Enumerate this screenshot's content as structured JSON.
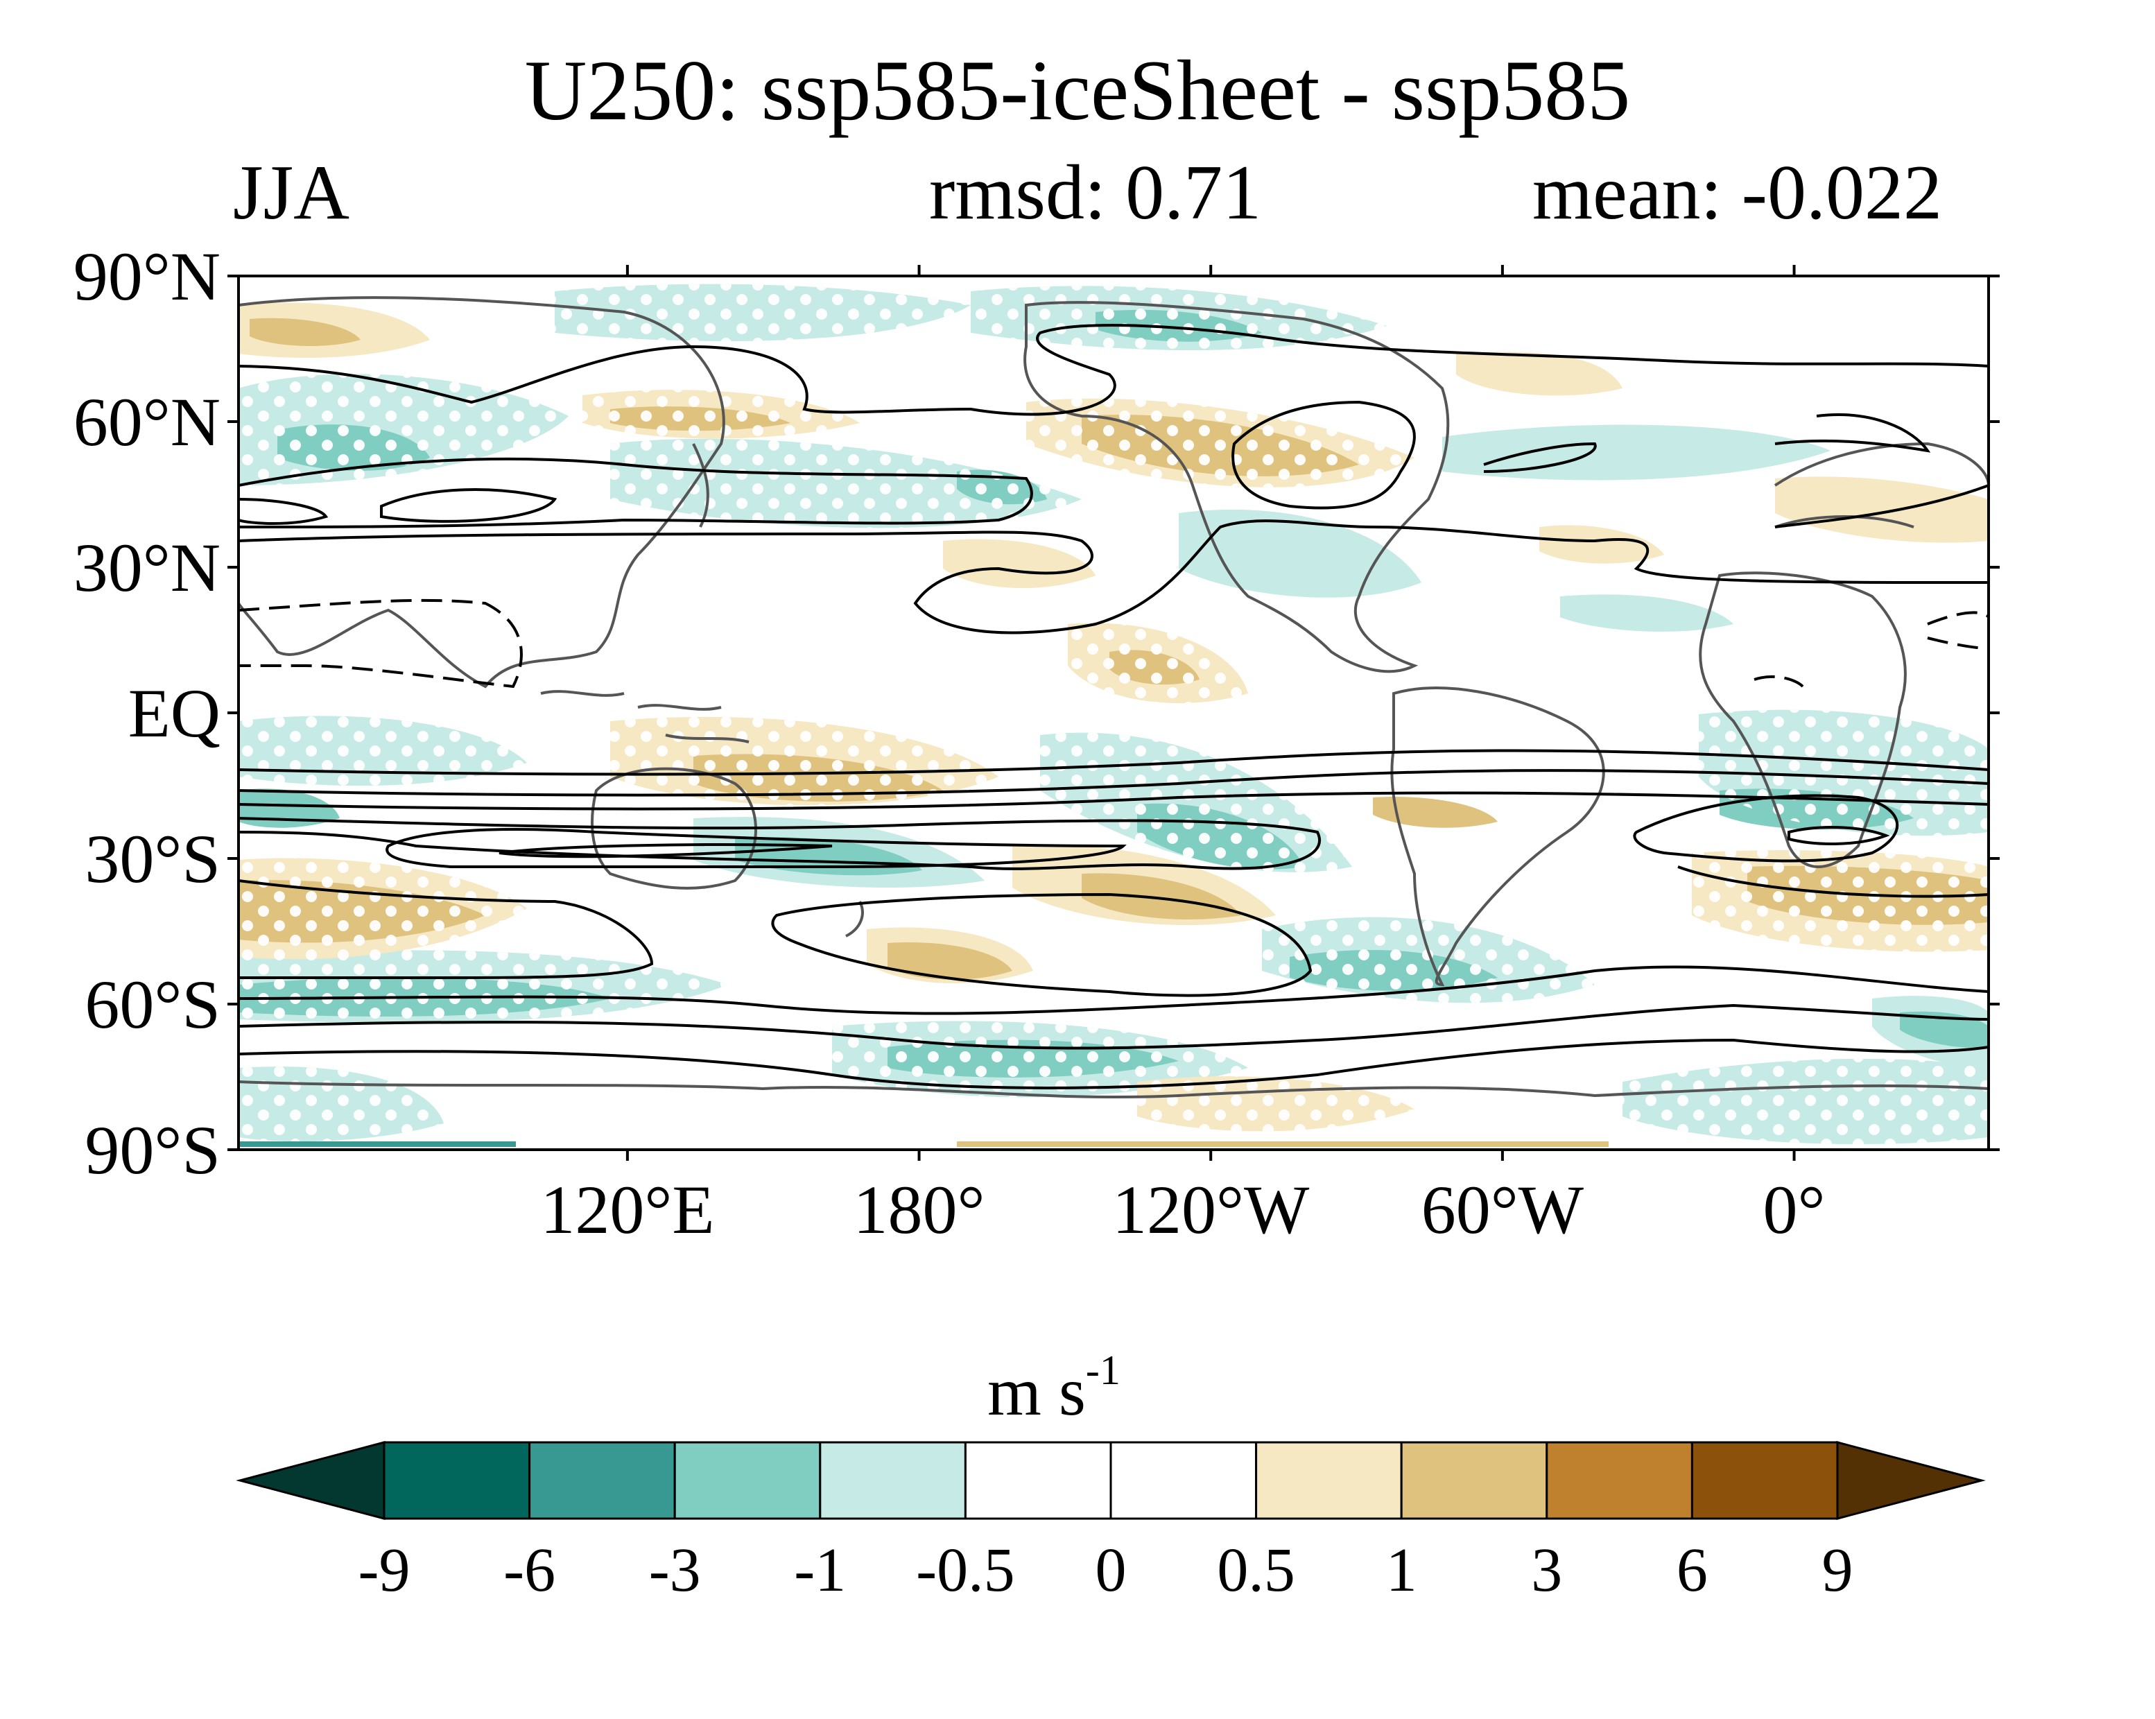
{
  "header": {
    "title": "U250: ssp585-iceSheet - ssp585",
    "season": "JJA",
    "rmsd": "rmsd: 0.71",
    "mean": "mean: -0.022"
  },
  "axes": {
    "lat_labels": [
      "90°N",
      "60°N",
      "30°N",
      "EQ",
      "30°S",
      "60°S",
      "90°S"
    ],
    "lat_values": [
      90,
      60,
      30,
      0,
      -30,
      -60,
      -90
    ],
    "lon_labels": [
      "120°E",
      "180°",
      "120°W",
      "60°W",
      "0°"
    ],
    "lon_values": [
      120,
      180,
      240,
      300,
      360
    ],
    "lon_range": [
      40,
      400
    ],
    "lat_range": [
      -90,
      90
    ]
  },
  "colorbar": {
    "units_base": "m s",
    "units_exp": "-1",
    "boundaries": [
      "-9",
      "-6",
      "-3",
      "-1",
      "-0.5",
      "0",
      "0.5",
      "1",
      "3",
      "6",
      "9"
    ],
    "colors": [
      "#02382f",
      "#01675c",
      "#379992",
      "#80cdc1",
      "#c6eae5",
      "#ffffff",
      "#ffffff",
      "#f6e8c3",
      "#dfc27d",
      "#bf812d",
      "#8c510a",
      "#543005"
    ]
  },
  "colors": {
    "coastline": "#555555",
    "contour": "#000000",
    "stipple": "#ffffff"
  }
}
